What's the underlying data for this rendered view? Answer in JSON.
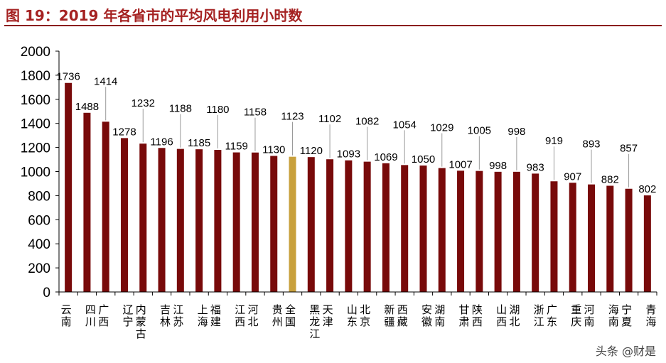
{
  "title": "图 19：2019 年各省市的平均风电利用小时数",
  "watermark": "头条 @财是",
  "colors": {
    "bar": "#780a0a",
    "highlight": "#c8a03c",
    "title": "#a52222",
    "leader": "#999999"
  },
  "chart_data": {
    "type": "bar",
    "title": "图 19：2019 年各省市的平均风电利用小时数",
    "xlabel": "",
    "ylabel": "",
    "ylim": [
      0,
      2000
    ],
    "yticks": [
      0,
      200,
      400,
      600,
      800,
      1000,
      1200,
      1400,
      1600,
      1800,
      2000
    ],
    "grid": false,
    "highlight_category": "全国",
    "categories": [
      "云南",
      "四川",
      "广西",
      "辽宁",
      "内蒙古",
      "吉林",
      "江苏",
      "上海",
      "福建",
      "江西",
      "河北",
      "贵州",
      "全国",
      "黑龙江",
      "天津",
      "山东",
      "北京",
      "新疆",
      "西藏",
      "安徽",
      "湖南",
      "甘肃",
      "陕西",
      "山西",
      "湖北",
      "浙江",
      "广东",
      "重庆",
      "河南",
      "海南",
      "宁夏",
      "青海"
    ],
    "values": [
      1736,
      1488,
      1414,
      1278,
      1232,
      1196,
      1188,
      1185,
      1180,
      1159,
      1158,
      1130,
      1123,
      1120,
      1102,
      1093,
      1082,
      1069,
      1054,
      1050,
      1029,
      1007,
      1005,
      998,
      998,
      983,
      919,
      907,
      893,
      882,
      857,
      802
    ]
  }
}
